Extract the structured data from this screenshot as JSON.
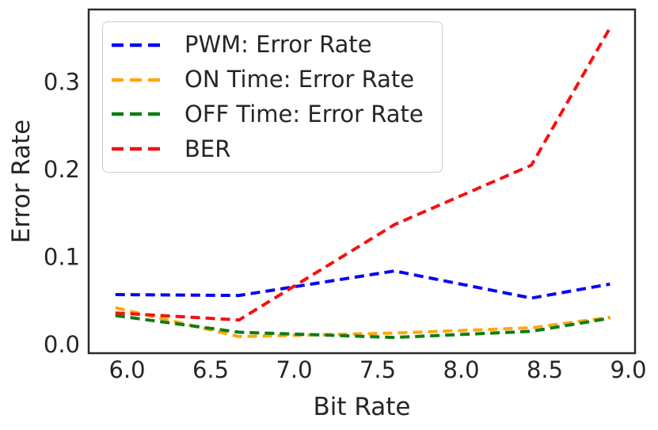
{
  "figure": {
    "background": "#ffffff",
    "text_color": "#262626",
    "spine_color": "#2b2b2b"
  },
  "chart_data": {
    "type": "line",
    "title": "",
    "xlabel": "Bit Rate",
    "ylabel": "Error Rate",
    "grid": false,
    "legend_position": "upper-left",
    "xlim": [
      5.77,
      9.04
    ],
    "ylim": [
      -0.01,
      0.383
    ],
    "xticks": [
      6.0,
      6.5,
      7.0,
      7.5,
      8.0,
      8.5,
      9.0
    ],
    "xtick_labels": [
      "6.0",
      "6.5",
      "7.0",
      "7.5",
      "8.0",
      "8.5",
      "9.0"
    ],
    "yticks": [
      0.0,
      0.1,
      0.2,
      0.3
    ],
    "ytick_labels": [
      "0.0",
      "0.1",
      "0.2",
      "0.3"
    ],
    "x": [
      5.93,
      6.67,
      7.6,
      8.42,
      8.89
    ],
    "series": [
      {
        "name": "PWM: Error Rate",
        "color": "#0505f5",
        "linestyle": "dashed",
        "values": [
          0.057,
          0.056,
          0.084,
          0.053,
          0.069
        ]
      },
      {
        "name": "ON Time: Error Rate",
        "color": "#ffa70f",
        "linestyle": "dashed",
        "values": [
          0.042,
          0.009,
          0.013,
          0.019,
          0.031
        ]
      },
      {
        "name": "OFF Time: Error Rate",
        "color": "#0e7d12",
        "linestyle": "dashed",
        "values": [
          0.033,
          0.014,
          0.008,
          0.015,
          0.03
        ]
      },
      {
        "name": "BER",
        "color": "#f51111",
        "linestyle": "dashed",
        "values": [
          0.036,
          0.028,
          0.137,
          0.205,
          0.362
        ]
      }
    ]
  }
}
